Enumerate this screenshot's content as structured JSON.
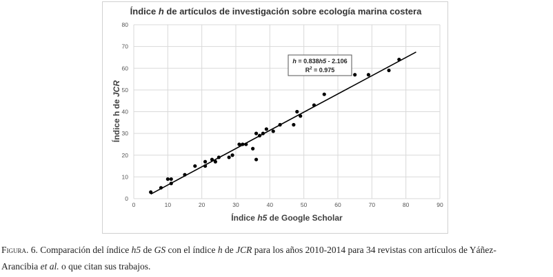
{
  "chart_data": {
    "type": "scatter",
    "title_parts": [
      "Índice ",
      "h",
      " de artículos de investigación sobre ecología marina costera"
    ],
    "xlabel_parts": [
      "Índice ",
      "h5",
      " de Google Scholar"
    ],
    "ylabel_parts": [
      "Índice h de ",
      "JCR"
    ],
    "xlim": [
      0,
      90
    ],
    "ylim": [
      0,
      80
    ],
    "x_ticks": [
      0,
      10,
      20,
      30,
      40,
      50,
      60,
      70,
      80,
      90
    ],
    "y_ticks": [
      0,
      10,
      20,
      30,
      40,
      50,
      60,
      70,
      80
    ],
    "grid": true,
    "points": [
      [
        5,
        3
      ],
      [
        8,
        5
      ],
      [
        10,
        9
      ],
      [
        11,
        9
      ],
      [
        11,
        7
      ],
      [
        15,
        11
      ],
      [
        18,
        15
      ],
      [
        21,
        15
      ],
      [
        21,
        17
      ],
      [
        23,
        18
      ],
      [
        24,
        17
      ],
      [
        25,
        19
      ],
      [
        28,
        19
      ],
      [
        29,
        20
      ],
      [
        31,
        25
      ],
      [
        32,
        25
      ],
      [
        33,
        25
      ],
      [
        35,
        23
      ],
      [
        36,
        30
      ],
      [
        36,
        18
      ],
      [
        37,
        29
      ],
      [
        38,
        30
      ],
      [
        39,
        32
      ],
      [
        41,
        31
      ],
      [
        43,
        34
      ],
      [
        47,
        34
      ],
      [
        48,
        40
      ],
      [
        49,
        38
      ],
      [
        53,
        43
      ],
      [
        56,
        48
      ],
      [
        65,
        57
      ],
      [
        69,
        57
      ],
      [
        75,
        59
      ],
      [
        78,
        64
      ]
    ],
    "trendline": {
      "slope": 0.838,
      "intercept": -2.106,
      "x_start": 5,
      "x_end": 83
    },
    "equation_parts": [
      "h",
      " = 0.838",
      "h5",
      " - 2.106"
    ],
    "r2_parts": [
      "R",
      "2",
      " = 0.975"
    ]
  },
  "caption": {
    "label": "Figura",
    "number": ". 6. ",
    "p1": "Comparación del índice ",
    "h5": "h5",
    "p2": " de ",
    "gs": "GS",
    "p3": " con el índice ",
    "h": "h",
    "p4": " de ",
    "jcr": "JCR",
    "p5": " para los años 2010-2014 para 34 revistas con artículos de Yáñez-",
    "p6": "Arancibia ",
    "etal": "et al.",
    "p7": " o que citan sus trabajos."
  }
}
